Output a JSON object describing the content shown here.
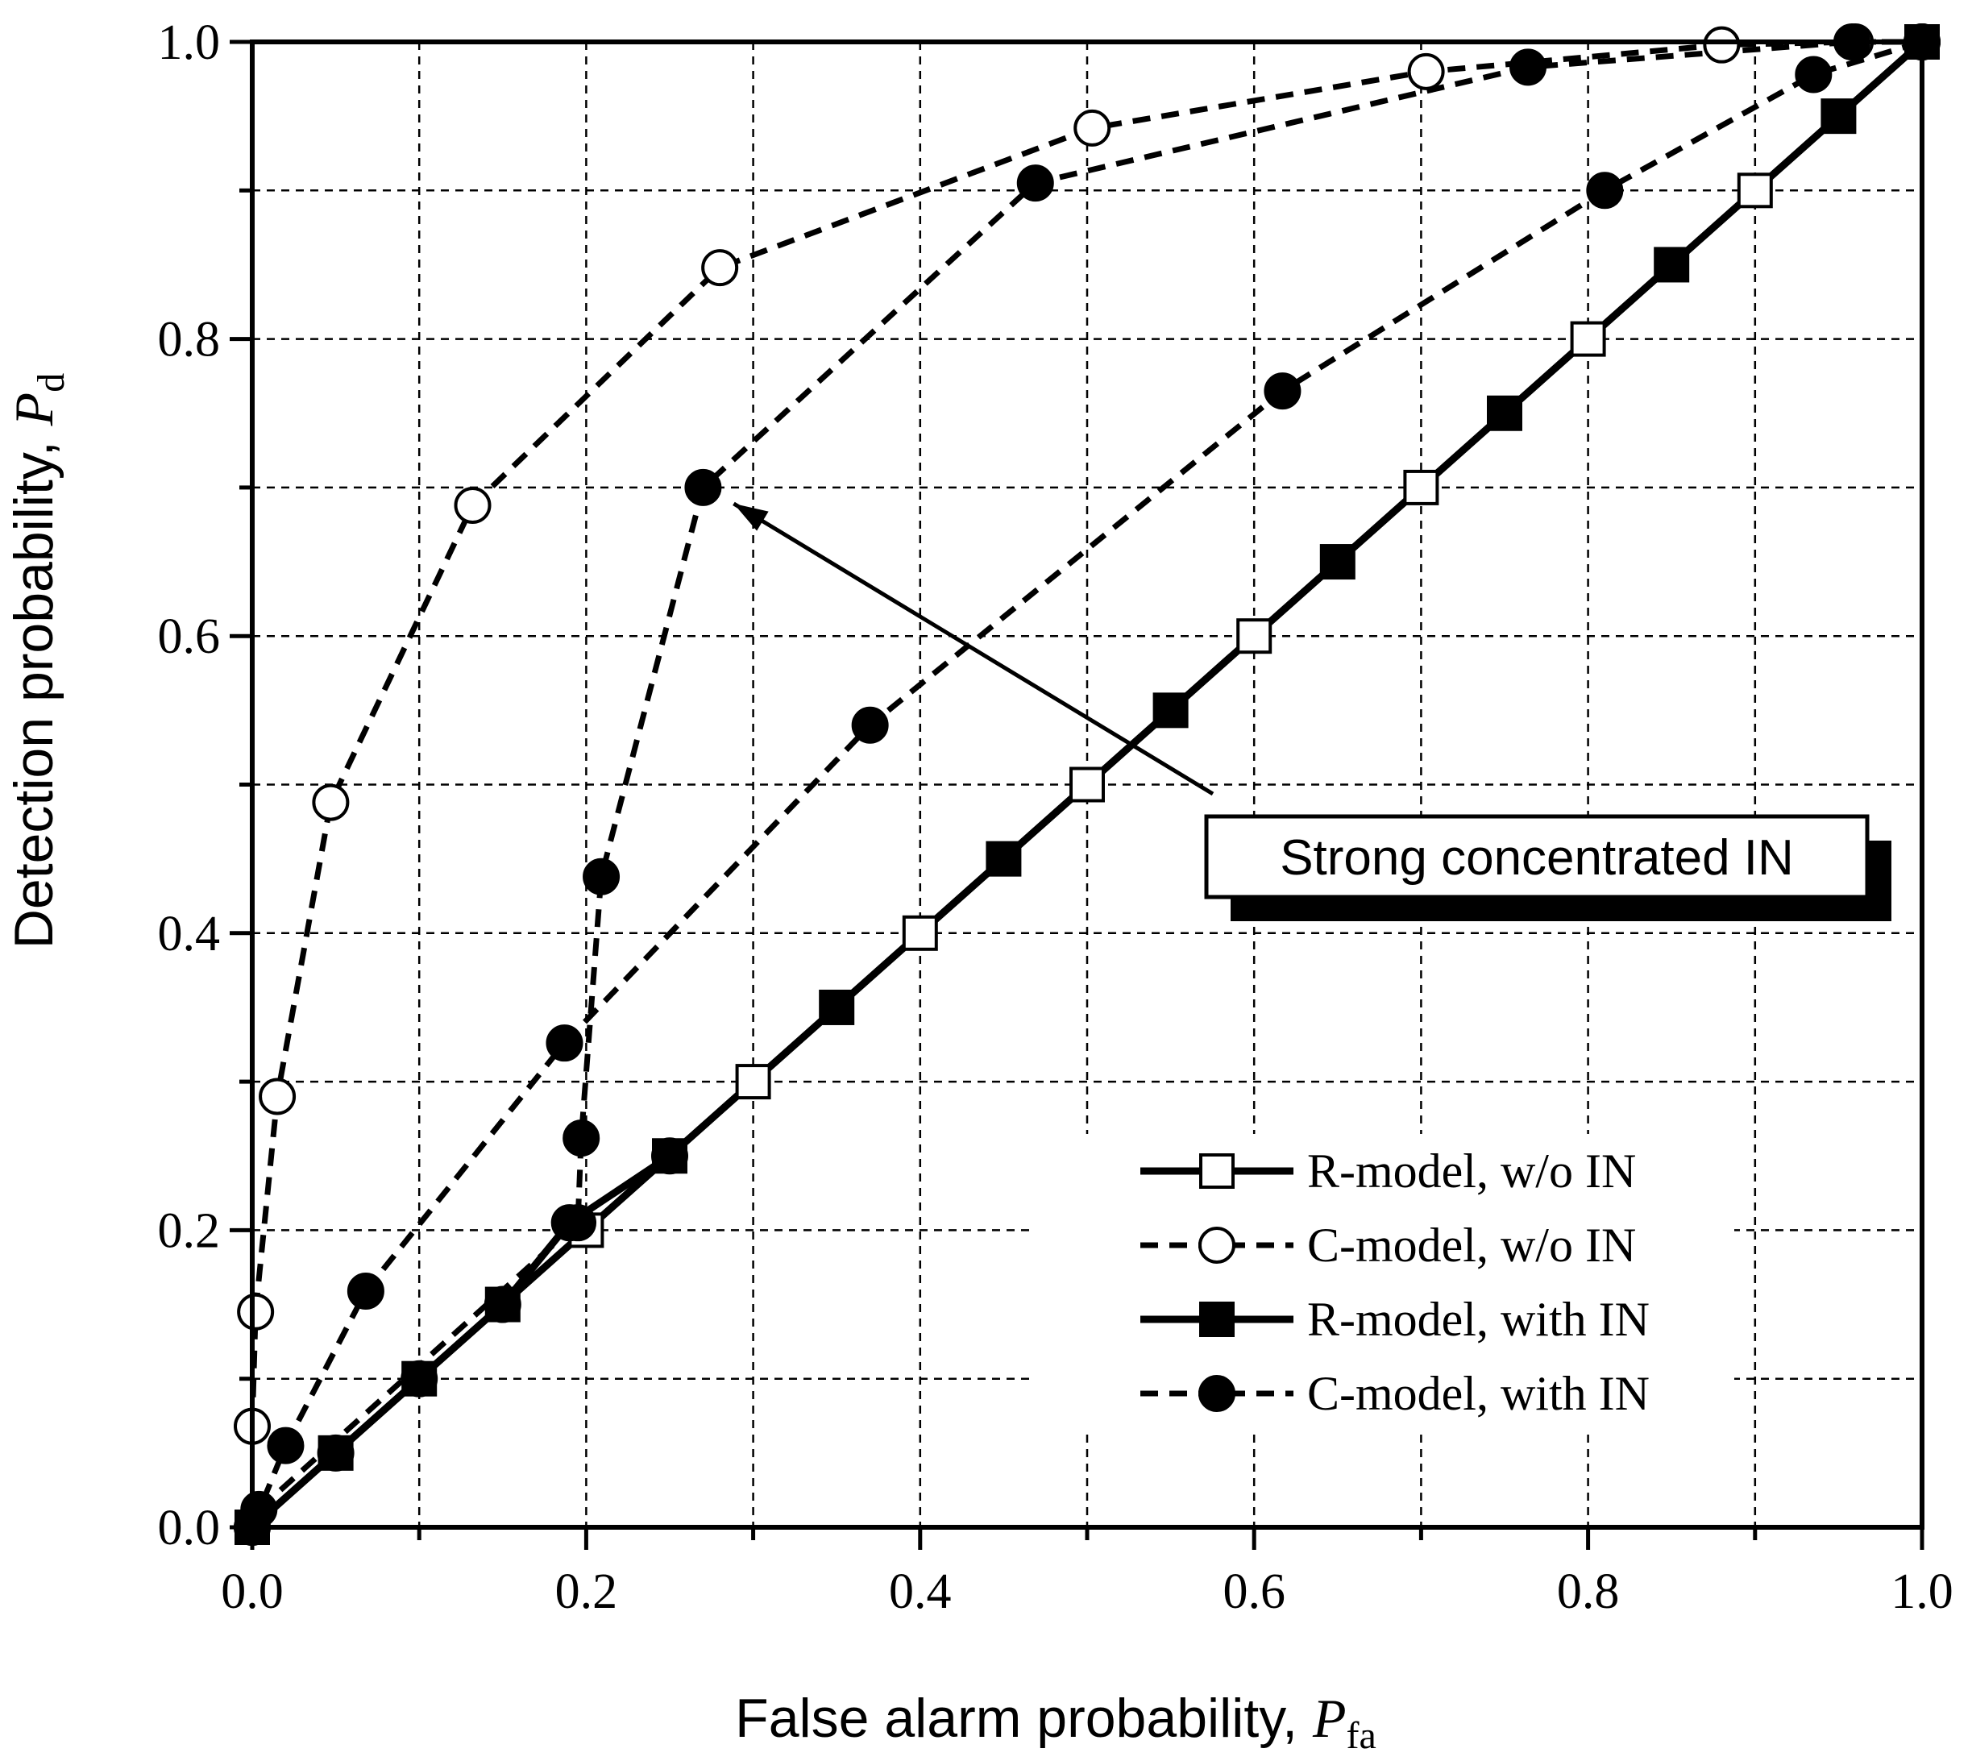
{
  "chart_data": {
    "type": "line",
    "xlabel": "False alarm probability, ",
    "xlabel_symbol": "P",
    "xlabel_sub": "fa",
    "ylabel": "Detection probability, ",
    "ylabel_symbol": "P",
    "ylabel_sub": "d",
    "xlim": [
      0.0,
      1.0
    ],
    "ylim": [
      0.0,
      1.0
    ],
    "x_ticks": [
      "0.0",
      "0.2",
      "0.4",
      "0.6",
      "0.8",
      "1.0"
    ],
    "y_ticks": [
      "0.0",
      "0.2",
      "0.4",
      "0.6",
      "0.8",
      "1.0"
    ],
    "grid": true,
    "legend_position": "bottom-right",
    "annotation": {
      "text": "Strong concentrated IN",
      "arrow_to": [
        0.27,
        0.7
      ]
    },
    "series": [
      {
        "name": "R-model, w/o IN",
        "line": "solid",
        "marker": "square-open",
        "points": [
          [
            0.2,
            0.2
          ],
          [
            0.3,
            0.3
          ],
          [
            0.4,
            0.4
          ],
          [
            0.5,
            0.5
          ],
          [
            0.6,
            0.6
          ],
          [
            0.7,
            0.7
          ],
          [
            0.8,
            0.8
          ],
          [
            0.9,
            0.9
          ],
          [
            1.0,
            1.0
          ]
        ]
      },
      {
        "name": "C-model, w/o IN",
        "line": "dashed",
        "marker": "circle-open",
        "points": [
          [
            0.0,
            0.068
          ],
          [
            0.002,
            0.145
          ],
          [
            0.015,
            0.29
          ],
          [
            0.047,
            0.488
          ],
          [
            0.132,
            0.688
          ],
          [
            0.28,
            0.848
          ],
          [
            0.503,
            0.942
          ],
          [
            0.703,
            0.98
          ],
          [
            0.88,
            0.998
          ],
          [
            0.96,
            1.0
          ],
          [
            1.0,
            1.0
          ]
        ]
      },
      {
        "name": "R-model, with IN",
        "line": "solid",
        "marker": "square-filled",
        "points": [
          [
            0.0,
            0.0
          ],
          [
            0.05,
            0.05
          ],
          [
            0.1,
            0.1
          ],
          [
            0.15,
            0.15
          ],
          [
            0.25,
            0.25
          ],
          [
            0.35,
            0.35
          ],
          [
            0.45,
            0.45
          ],
          [
            0.55,
            0.55
          ],
          [
            0.65,
            0.65
          ],
          [
            0.75,
            0.75
          ],
          [
            0.85,
            0.85
          ],
          [
            0.95,
            0.95
          ],
          [
            1.0,
            1.0
          ]
        ]
      },
      {
        "name": "C-model, with IN",
        "line": "dashed",
        "marker": "circle-filled",
        "points": [
          [
            0.004,
            0.012
          ],
          [
            0.195,
            0.205
          ],
          [
            0.197,
            0.262
          ],
          [
            0.209,
            0.438
          ],
          [
            0.27,
            0.7
          ],
          [
            0.469,
            0.905
          ],
          [
            0.764,
            0.983
          ],
          [
            0.958,
            1.0
          ],
          [
            1.0,
            1.0
          ]
        ]
      },
      {
        "name": "",
        "line": "dashed",
        "marker": "circle-filled",
        "points": [
          [
            0.0,
            0.0
          ],
          [
            0.02,
            0.055
          ],
          [
            0.068,
            0.159
          ],
          [
            0.187,
            0.326
          ],
          [
            0.37,
            0.54
          ],
          [
            0.617,
            0.765
          ],
          [
            0.81,
            0.9
          ],
          [
            0.935,
            0.978
          ],
          [
            1.0,
            1.0
          ]
        ]
      },
      {
        "name": "",
        "line": "solid",
        "marker": "circle-filled",
        "points": [
          [
            0.0,
            0.0
          ],
          [
            0.05,
            0.05
          ],
          [
            0.1,
            0.1
          ],
          [
            0.15,
            0.15
          ],
          [
            0.19,
            0.205
          ],
          [
            0.25,
            0.25
          ]
        ]
      }
    ]
  }
}
